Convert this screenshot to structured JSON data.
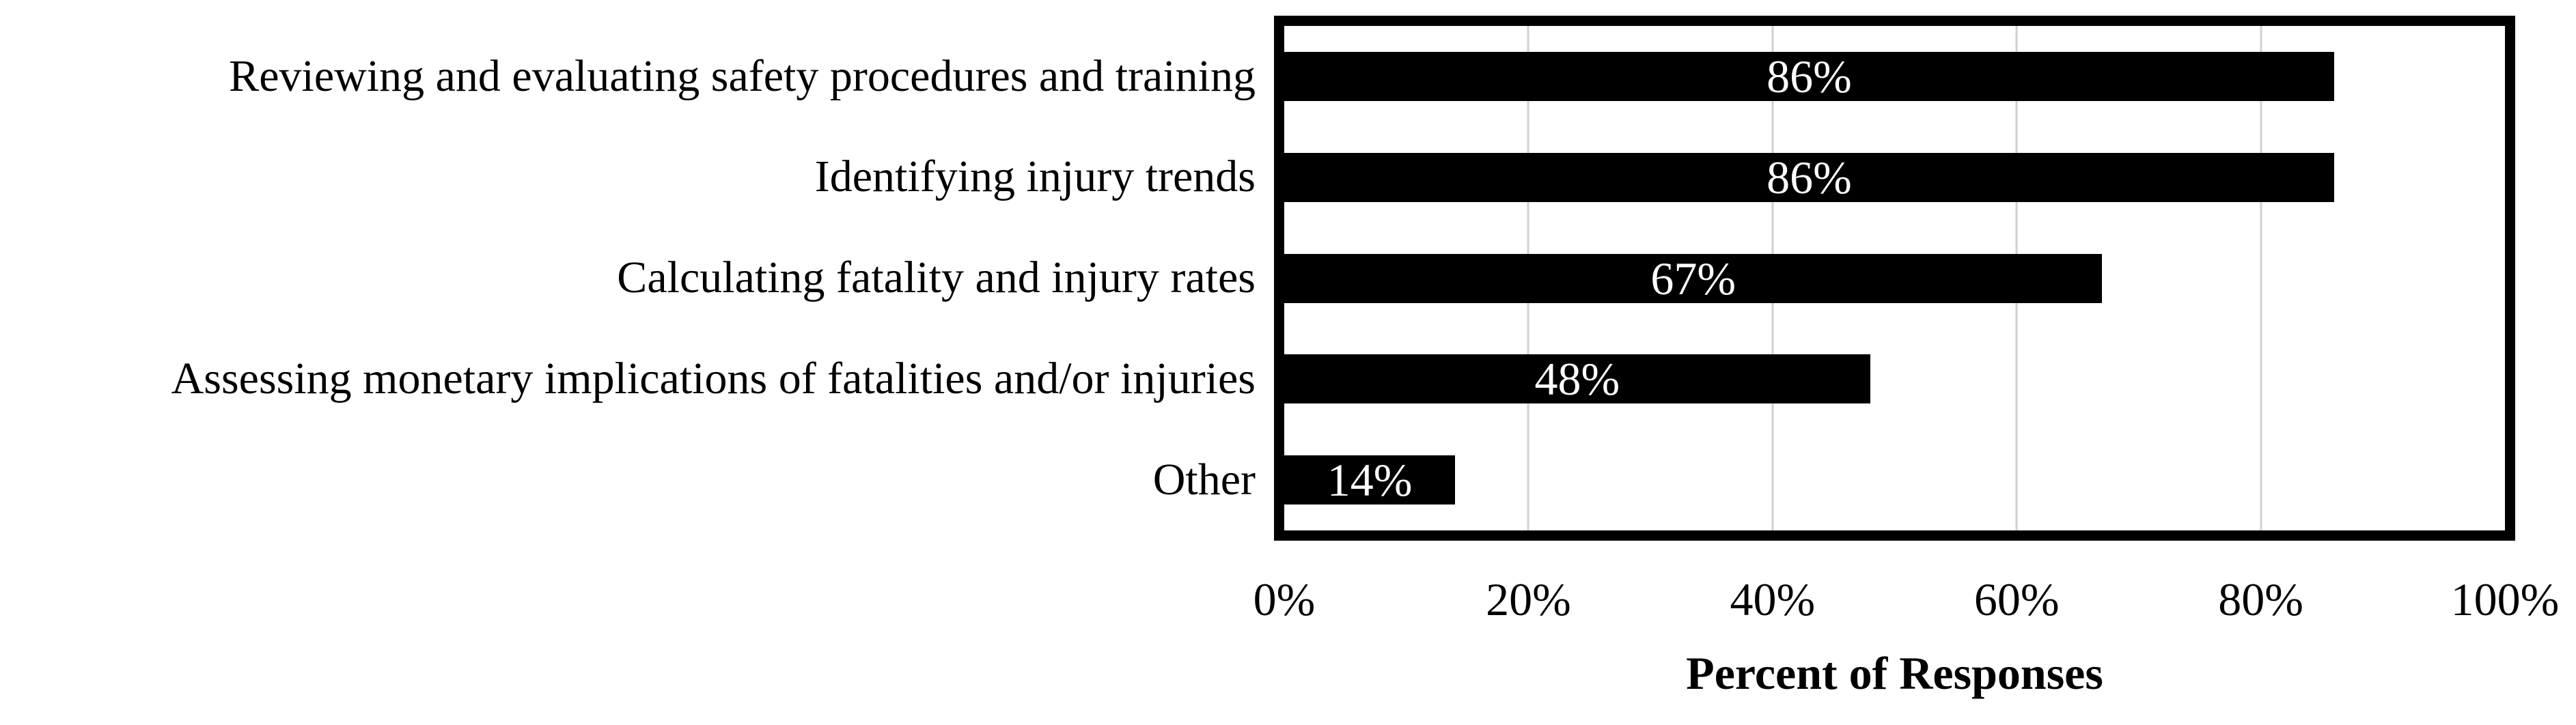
{
  "chart_data": {
    "type": "bar",
    "orientation": "horizontal",
    "title": "",
    "categories": [
      "Reviewing and evaluating safety procedures and training",
      "Identifying injury trends",
      "Calculating fatality and injury rates",
      "Assessing monetary implications of fatalities and/or injuries",
      "Other"
    ],
    "values": [
      86,
      86,
      67,
      48,
      14
    ],
    "value_labels": [
      "86%",
      "86%",
      "67%",
      "48%",
      "14%"
    ],
    "xlabel": "Percent of Responses",
    "ylabel": "",
    "x_ticks": [
      "0%",
      "20%",
      "40%",
      "60%",
      "80%",
      "100%"
    ],
    "xlim": [
      0,
      100
    ],
    "grid": "vertical-gridlines-at-20-percent-steps",
    "legend": "none",
    "colors": {
      "bar": "#000000",
      "bar_value_label": "#ffffff",
      "gridline": "#d0d0d0",
      "plot_border": "#000000",
      "text": "#000000",
      "background": "#ffffff"
    }
  }
}
